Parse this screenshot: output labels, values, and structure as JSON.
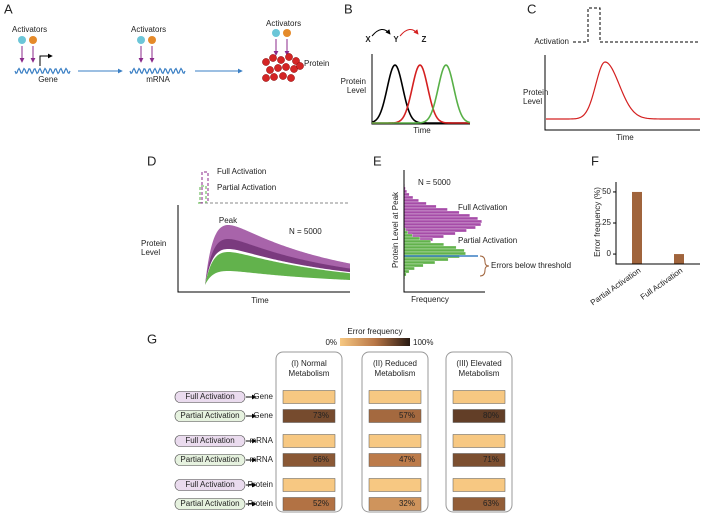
{
  "a": {
    "label": "A",
    "activators": [
      "Activators",
      "Activators",
      "Activators"
    ],
    "stages": [
      "Gene",
      "mRNA",
      "Protein"
    ]
  },
  "b": {
    "label": "B",
    "species": [
      "X",
      "Y",
      "Z"
    ],
    "y_label": [
      "Protein",
      "Level"
    ],
    "x_label": "Time"
  },
  "c": {
    "label": "C",
    "input_label": "Activation",
    "y_label": [
      "Protein",
      "Level"
    ],
    "x_label": "Time"
  },
  "d": {
    "label": "D",
    "legend": [
      "Full Activation",
      "Partial Activation"
    ],
    "peak": "Peak",
    "n": "N = 5000",
    "y_label": [
      "Protein",
      "Level"
    ],
    "x_label": "Time"
  },
  "e": {
    "label": "E",
    "n": "N = 5000",
    "series": [
      "Full Activation",
      "Partial Activation"
    ],
    "annotation": "Errors below threshold",
    "y_label": "Protein Level at Peak",
    "x_label": "Frequency"
  },
  "f": {
    "label": "F",
    "type": "bar",
    "y_label": "Error frequency (%)",
    "categories": [
      "Partial Activation",
      "Full Activation"
    ],
    "values": [
      50,
      0
    ],
    "color": "#a0643c",
    "ylim": [
      -8,
      58
    ],
    "yticks": [
      0,
      25,
      50
    ]
  },
  "g": {
    "label": "G",
    "legend_title": "Error frequency",
    "legend_min": "0%",
    "legend_max": "100%",
    "conditions": [
      [
        "(I) Normal",
        "Metabolism"
      ],
      [
        "(II) Reduced",
        "Metabolism"
      ],
      [
        "(III) Elevated",
        "Metabolism"
      ]
    ],
    "rows": [
      {
        "input": "Full Activation",
        "output": "Gene"
      },
      {
        "input": "Partial Activation",
        "output": "Gene"
      },
      {
        "input": "Full Activation",
        "output": "mRNA"
      },
      {
        "input": "Partial Activation",
        "output": "mRNA"
      },
      {
        "input": "Full Activation",
        "output": "Protein"
      },
      {
        "input": "Partial Activation",
        "output": "Protein"
      }
    ],
    "values": [
      [
        0,
        0,
        0
      ],
      [
        73,
        57,
        80
      ],
      [
        0,
        0,
        0
      ],
      [
        66,
        47,
        71
      ],
      [
        0,
        0,
        0
      ],
      [
        52,
        32,
        63
      ]
    ],
    "value_labels": [
      [
        null,
        null,
        null
      ],
      [
        "73%",
        "57%",
        "80%"
      ],
      [
        null,
        null,
        null
      ],
      [
        "66%",
        "47%",
        "71%"
      ],
      [
        null,
        null,
        null
      ],
      [
        "52%",
        "32%",
        "63%"
      ]
    ]
  }
}
